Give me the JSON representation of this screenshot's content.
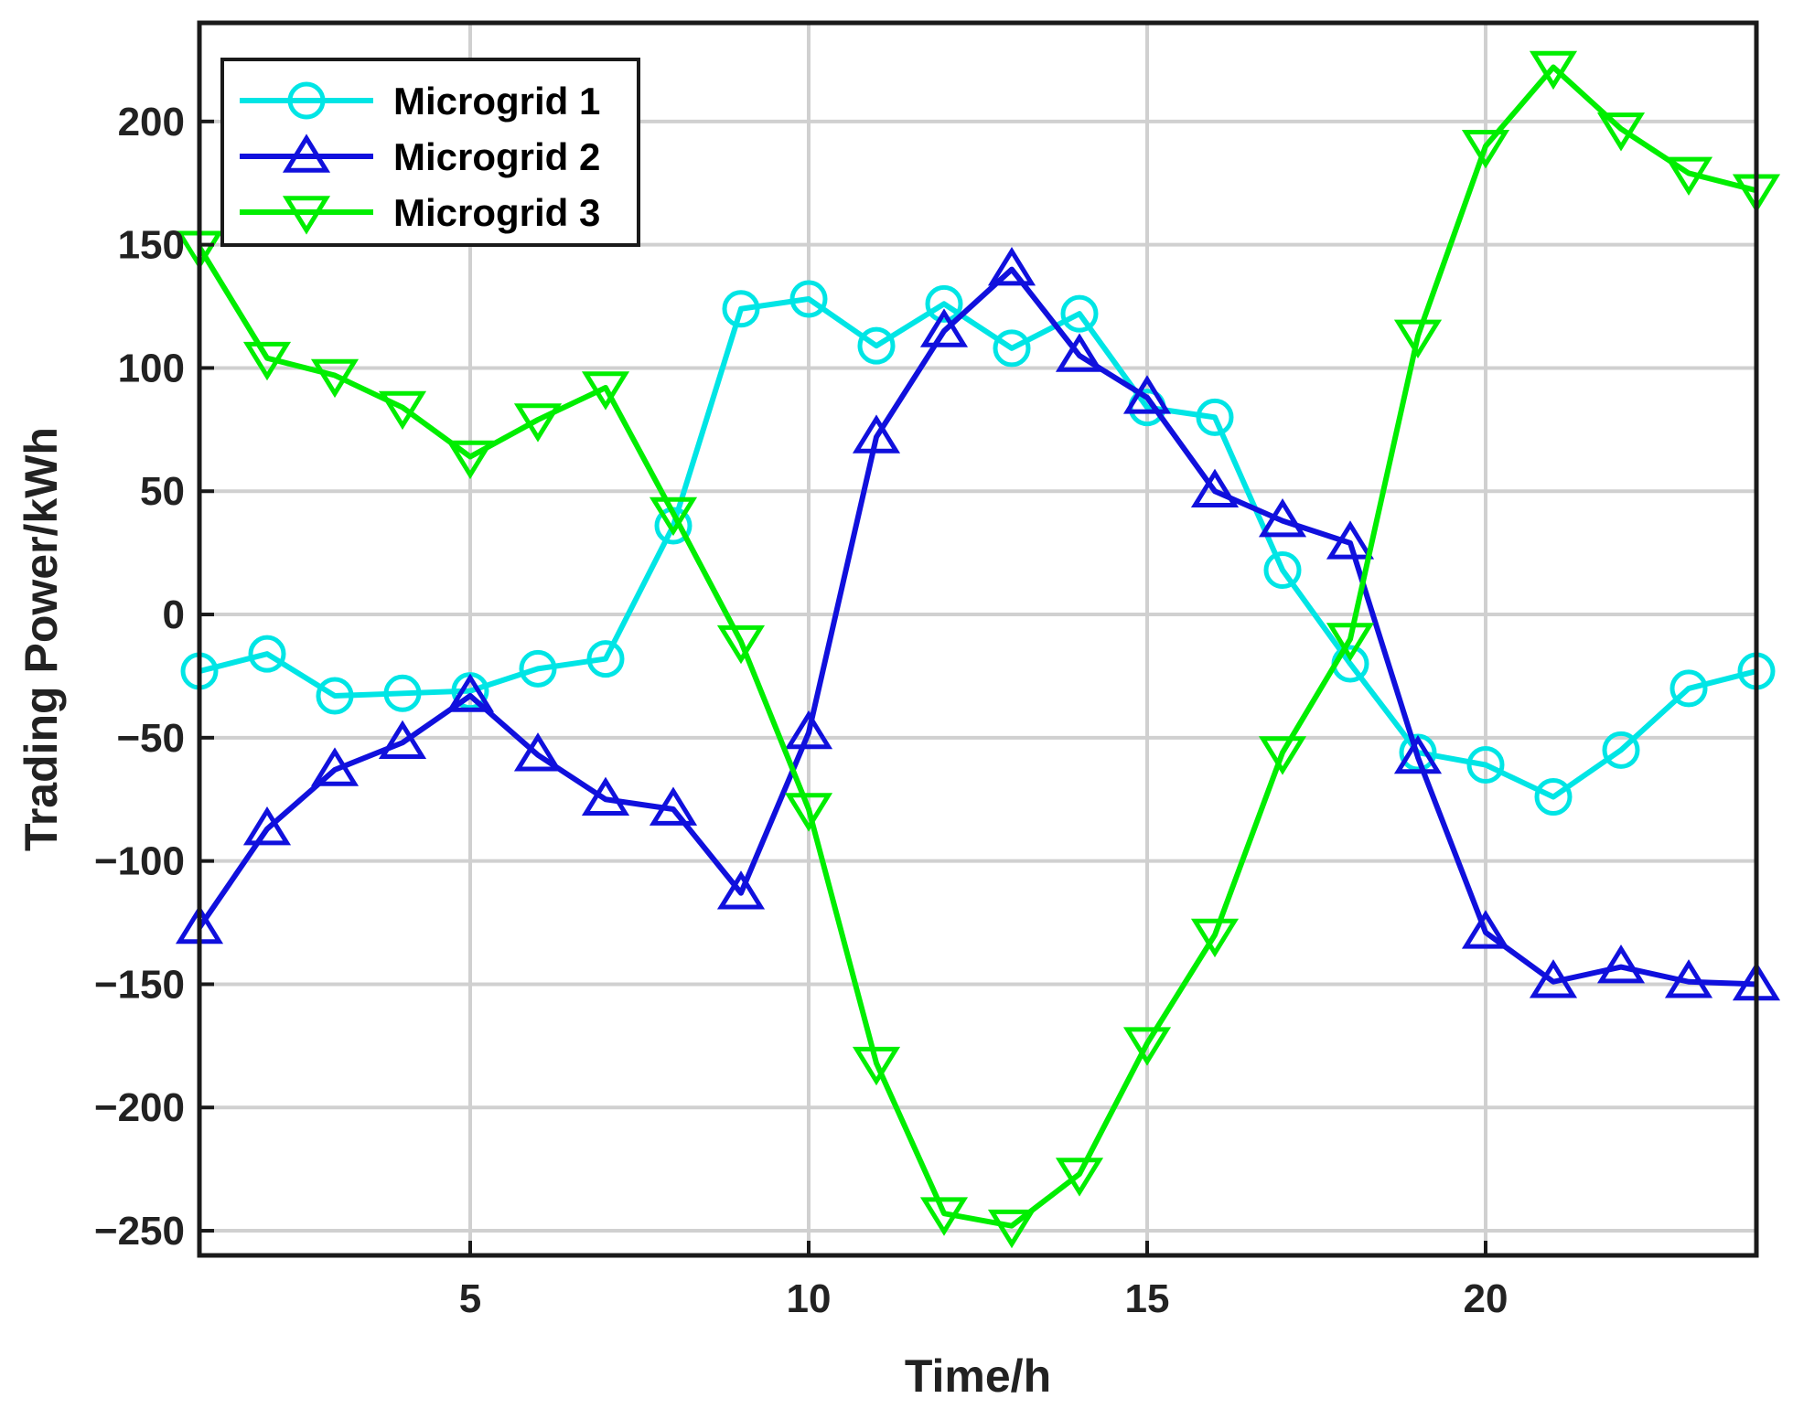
{
  "chart_data": {
    "type": "line",
    "xlabel": "Time/h",
    "ylabel": "Trading Power/kWh",
    "xlim": [
      1,
      24
    ],
    "ylim": [
      -260,
      240
    ],
    "xticks": [
      5,
      10,
      15,
      20
    ],
    "yticks": [
      -250,
      -200,
      -150,
      -100,
      -50,
      0,
      50,
      100,
      150,
      200
    ],
    "ytick_labels": [
      "−250",
      "−200",
      "−150",
      "−100",
      "−50",
      "0",
      "50",
      "100",
      "150",
      "200"
    ],
    "grid": true,
    "legend_position": "top-left",
    "x": [
      1,
      2,
      3,
      4,
      5,
      6,
      7,
      8,
      9,
      10,
      11,
      12,
      13,
      14,
      15,
      16,
      17,
      18,
      19,
      20,
      21,
      22,
      23,
      24
    ],
    "series": [
      {
        "name": "Microgrid 1",
        "color": "#00e5e5",
        "marker": "circle",
        "values": [
          -23,
          -16,
          -33,
          -32,
          -31,
          -22,
          -18,
          36,
          124,
          128,
          109,
          126,
          108,
          122,
          84,
          80,
          18,
          -20,
          -56,
          -61,
          -74,
          -55,
          -30,
          -23
        ]
      },
      {
        "name": "Microgrid 2",
        "color": "#1010dd",
        "marker": "triangle-up",
        "values": [
          -127,
          -87,
          -63,
          -52,
          -33,
          -57,
          -75,
          -79,
          -113,
          -48,
          72,
          115,
          140,
          105,
          88,
          50,
          38,
          29,
          -58,
          -129,
          -149,
          -143,
          -149,
          -150
        ]
      },
      {
        "name": "Microgrid 3",
        "color": "#00ee00",
        "marker": "triangle-down",
        "values": [
          149,
          104,
          97,
          84,
          64,
          79,
          92,
          41,
          -11,
          -79,
          -182,
          -243,
          -248,
          -227,
          -174,
          -130,
          -56,
          -10,
          113,
          190,
          222,
          197,
          179,
          172
        ]
      }
    ]
  }
}
